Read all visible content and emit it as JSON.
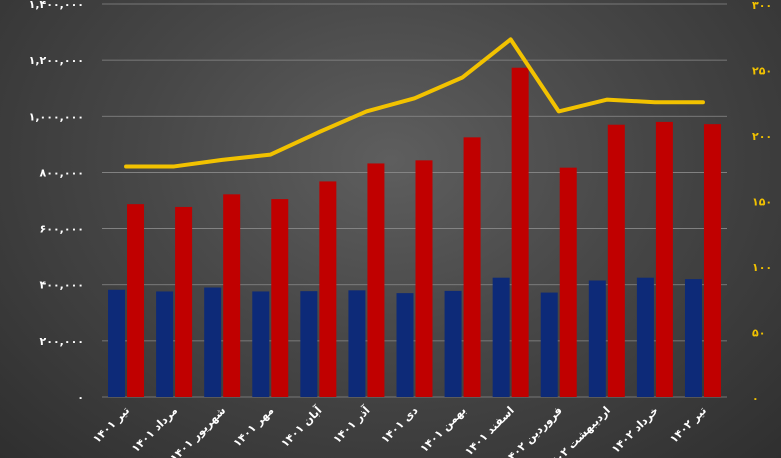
{
  "chart_data": {
    "type": "bar",
    "title": "",
    "xlabel": "",
    "ylabel": "",
    "categories": [
      "تیر ۱۴۰۱",
      "مرداد ۱۴۰۱",
      "شهریور ۱۴۰۱",
      "مهر ۱۴۰۱",
      "آبان ۱۴۰۱",
      "آذر ۱۴۰۱",
      "دی ۱۴۰۱",
      "بهمن ۱۴۰۱",
      "اسفند ۱۴۰۱",
      "فروردین ۱۴۰۲",
      "اردیبهشت ۱۴۰۲",
      "خرداد ۱۴۰۲",
      "تیر ۱۴۰۲"
    ],
    "ylim": [
      0,
      1400000
    ],
    "y2lim": [
      0,
      300
    ],
    "yticks": [
      "۰",
      "۲۰۰,۰۰۰",
      "۴۰۰,۰۰۰",
      "۶۰۰,۰۰۰",
      "۸۰۰,۰۰۰",
      "۱,۰۰۰,۰۰۰",
      "۱,۲۰۰,۰۰۰",
      "۱,۴۰۰,۰۰۰"
    ],
    "y2ticks": [
      "۰",
      "۵۰",
      "۱۰۰",
      "۱۵۰",
      "۲۰۰",
      "۲۵۰",
      "۳۰۰"
    ],
    "grid": true,
    "legend": "none",
    "series": [
      {
        "kind": "bar",
        "axis": "left",
        "color": "#0d2a78",
        "values": [
          382000,
          376000,
          390000,
          376000,
          377000,
          380000,
          370000,
          378000,
          425000,
          372000,
          415000,
          425000,
          420000
        ]
      },
      {
        "kind": "bar",
        "axis": "left",
        "color": "#c00000",
        "values": [
          687000,
          677000,
          722000,
          705000,
          768000,
          832000,
          843000,
          925000,
          1173000,
          817000,
          970000,
          980000,
          972000
        ]
      },
      {
        "kind": "line",
        "axis": "right",
        "color": "#f2c200",
        "values": [
          176,
          176,
          181,
          185,
          202,
          218,
          228,
          244,
          273,
          218,
          227,
          225,
          225
        ]
      }
    ]
  }
}
